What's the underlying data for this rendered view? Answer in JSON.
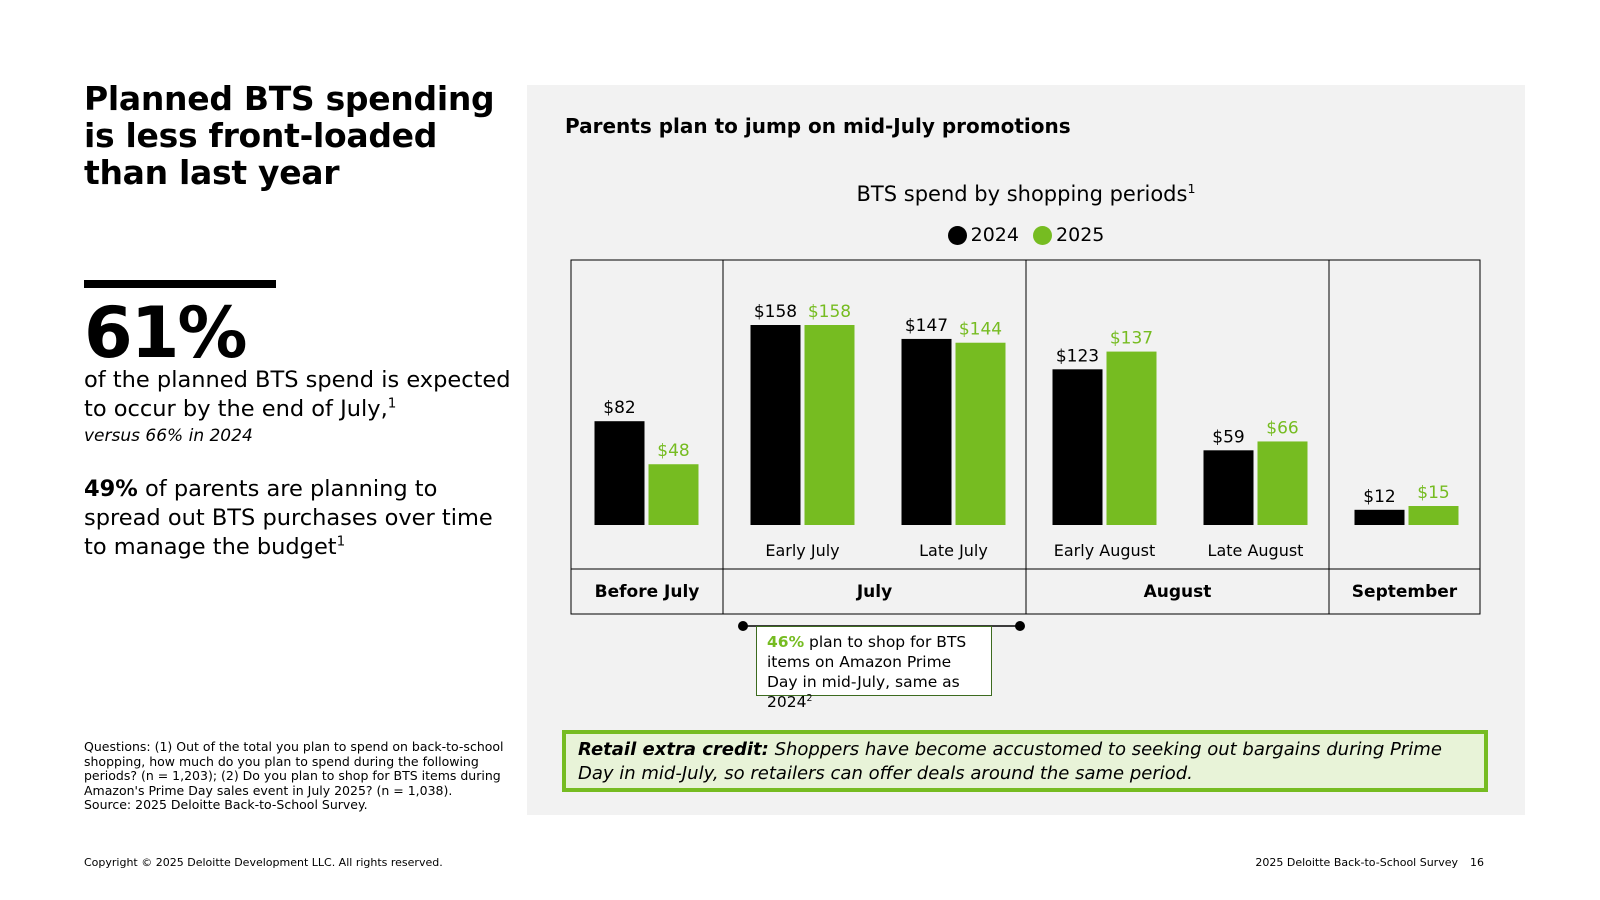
{
  "left": {
    "title": "Planned BTS spending is less front-loaded than last year",
    "stat_value": "61%",
    "stat_desc": "of the planned BTS spend is expected to occur by the end of July,",
    "stat_desc_sup": "1",
    "stat_note": "versus 66% in 2024",
    "stat2_bold": "49%",
    "stat2_text": " of parents are planning to spread out BTS purchases over time to manage the budget",
    "stat2_sup": "1",
    "footnote_lines": [
      "Questions: (1) Out of the total you plan to spend on back-to-school shopping, how much do you plan to spend during the following periods? (n = 1,203); (2) Do you plan to shop for BTS items during Amazon's Prime Day sales event in July 2025? (n = 1,038).",
      "Source: 2025 Deloitte Back-to-School Survey."
    ]
  },
  "footer": {
    "copyright": "Copyright © 2025 Deloitte Development LLC. All rights reserved.",
    "survey": "2025 Deloitte Back-to-School Survey",
    "page_number": "16"
  },
  "panel": {
    "title": "Parents plan to jump on mid-July promotions",
    "callout_bold": "46%",
    "callout_text": " plan to shop for BTS items on Amazon Prime Day in mid-July, same as 2024",
    "callout_sup": "2",
    "credit_bold": "Retail extra credit:",
    "credit_text": " Shoppers have become accustomed to seeking out bargains during Prime Day in mid-July, so retailers can offer deals around the same period."
  },
  "colors": {
    "series_2024": "#000000",
    "series_2025": "#76bc21",
    "panel_bg": "#f2f2f2"
  },
  "chart_data": {
    "type": "bar",
    "title": "BTS spend by shopping periods",
    "title_sup": "1",
    "categories": [
      "Before July",
      "Early July",
      "Late July",
      "Early August",
      "Late August",
      "September"
    ],
    "series": [
      {
        "name": "2024",
        "values": [
          82,
          158,
          147,
          123,
          59,
          12
        ],
        "labels": [
          "$82",
          "$158",
          "$147",
          "$123",
          "$59",
          "$12"
        ]
      },
      {
        "name": "2025",
        "values": [
          48,
          158,
          144,
          137,
          66,
          15
        ],
        "labels": [
          "$48",
          "$158",
          "$144",
          "$137",
          "$66",
          "$15"
        ]
      }
    ],
    "groups": [
      {
        "label": "Before July",
        "categories": [
          "Before July"
        ]
      },
      {
        "label": "July",
        "categories": [
          "Early July",
          "Late July"
        ]
      },
      {
        "label": "August",
        "categories": [
          "Early August",
          "Late August"
        ]
      },
      {
        "label": "September",
        "categories": [
          "September"
        ]
      }
    ],
    "ylim": [
      0,
      160
    ],
    "legend_position": "top-center"
  }
}
